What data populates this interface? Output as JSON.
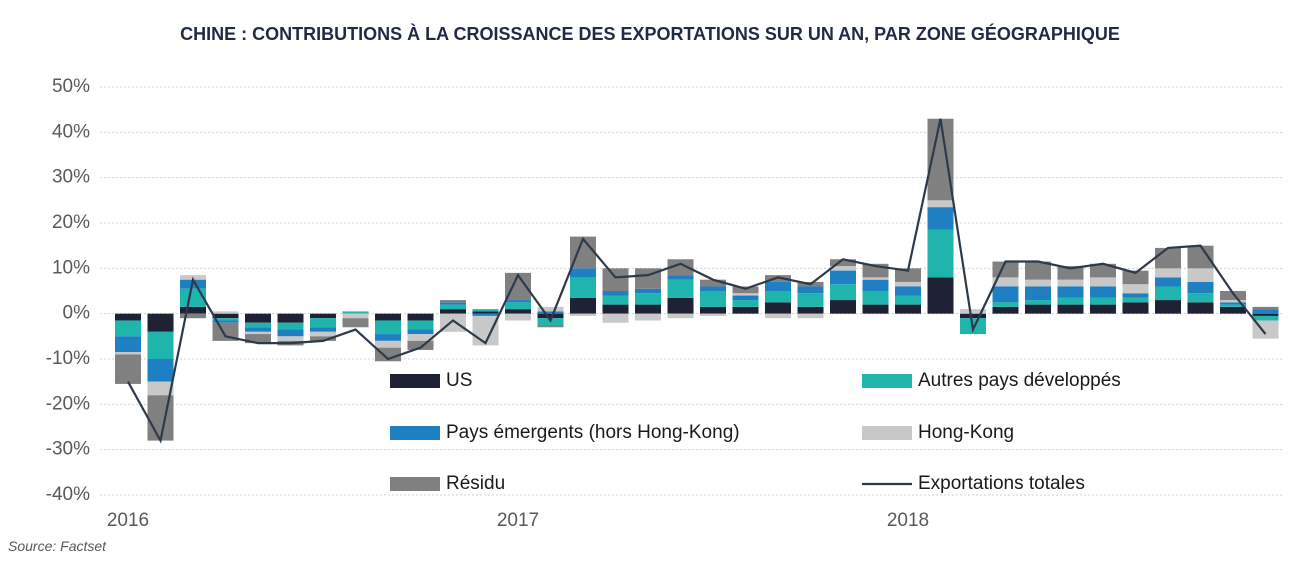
{
  "chart_data": {
    "type": "bar",
    "stacked": true,
    "title": "CHINE : CONTRIBUTIONS À LA CROISSANCE DES EXPORTATIONS SUR UN AN, PAR ZONE GÉOGRAPHIQUE",
    "source": "Source: Factset",
    "categories": [
      "2016",
      null,
      null,
      null,
      null,
      null,
      null,
      null,
      null,
      null,
      null,
      null,
      "2017",
      null,
      null,
      null,
      null,
      null,
      null,
      null,
      null,
      null,
      null,
      null,
      "2018",
      null,
      null,
      null,
      null,
      null,
      null,
      null,
      null,
      null,
      null,
      null
    ],
    "ylim": [
      -40,
      50
    ],
    "yticks": [
      {
        "value": -40,
        "label": "-40%"
      },
      {
        "value": -30,
        "label": "-30%"
      },
      {
        "value": -20,
        "label": "-20%"
      },
      {
        "value": -10,
        "label": "-10%"
      },
      {
        "value": 0,
        "label": "0%"
      },
      {
        "value": 10,
        "label": "10%"
      },
      {
        "value": 20,
        "label": "20%"
      },
      {
        "value": 30,
        "label": "30%"
      },
      {
        "value": 40,
        "label": "40%"
      },
      {
        "value": 50,
        "label": "50%"
      }
    ],
    "grid": true,
    "series": [
      {
        "name": "US",
        "color": "#1f2235",
        "values": [
          -1.5,
          -4,
          1.5,
          -1,
          -2,
          -2,
          -1,
          0,
          -1.5,
          -1.5,
          1,
          0.5,
          1,
          -1,
          3.5,
          2,
          2,
          3.5,
          1.5,
          1.5,
          2.5,
          1.5,
          3,
          2,
          2,
          8,
          -1,
          1.5,
          2,
          2,
          2,
          2.5,
          3,
          2.5,
          1.5,
          -0.5
        ]
      },
      {
        "name": "Autres pays développés",
        "color": "#1fb5ad",
        "values": [
          -3.5,
          -6,
          4,
          -0.5,
          -1,
          -1.5,
          -2,
          0.5,
          -3,
          -2,
          1,
          0.5,
          1.5,
          -1.5,
          4.5,
          2,
          2.5,
          4,
          3.5,
          1.5,
          2.5,
          3,
          3.5,
          3,
          2,
          10.5,
          -3.5,
          1,
          1,
          1.5,
          1.5,
          1,
          3,
          2,
          0.5,
          -1
        ]
      },
      {
        "name": "Pays émergents (hors Hong-Kong)",
        "color": "#1e7fc2",
        "values": [
          -3.5,
          -5,
          2,
          -0.5,
          -1,
          -1.5,
          -1,
          0,
          -1.5,
          -1,
          0.5,
          -0.5,
          0.5,
          0.5,
          2,
          1,
          1,
          1,
          1,
          1,
          2,
          1.5,
          3,
          2.5,
          2,
          5,
          0,
          3.5,
          3,
          2.5,
          2.5,
          1,
          2,
          2.5,
          0.5,
          1
        ]
      },
      {
        "name": "Hong-Kong",
        "color": "#c8c8c8",
        "values": [
          -0.5,
          -3,
          1,
          0.5,
          -0.5,
          -1,
          -1,
          -1,
          -1.5,
          -1.5,
          -4,
          -6.5,
          -1.5,
          1,
          -0.5,
          -2,
          -1.5,
          -1,
          -0.5,
          0.5,
          -1,
          -1,
          1,
          0.5,
          1,
          1.5,
          1,
          2,
          1.5,
          1.5,
          2,
          2,
          2,
          3,
          0.5,
          -4
        ]
      },
      {
        "name": "Résidu",
        "color": "#808080",
        "values": [
          -6.5,
          -10,
          -1,
          -4,
          -2,
          -1,
          -1,
          -2,
          -3,
          -2,
          0.5,
          0,
          6,
          -0.5,
          7,
          5,
          4.5,
          3.5,
          1.5,
          1.5,
          1.5,
          1,
          1.5,
          3,
          3,
          18,
          0,
          3.5,
          4,
          3,
          3,
          3,
          4.5,
          5,
          2,
          0.5
        ]
      },
      {
        "name": "Exportations totales",
        "type": "line",
        "color": "#2d3a4a",
        "values": [
          -15,
          -28,
          7.5,
          -5,
          -6.5,
          -6.5,
          -6,
          -3.5,
          -10,
          -7.5,
          -1.5,
          -6.5,
          8.5,
          -1.5,
          16.5,
          8,
          8.5,
          11,
          7.5,
          5.5,
          8,
          6.5,
          12,
          10.5,
          9.5,
          43,
          -3.5,
          11.5,
          11.5,
          10,
          11,
          9,
          14.5,
          15,
          4.5,
          -4.5
        ]
      }
    ]
  }
}
